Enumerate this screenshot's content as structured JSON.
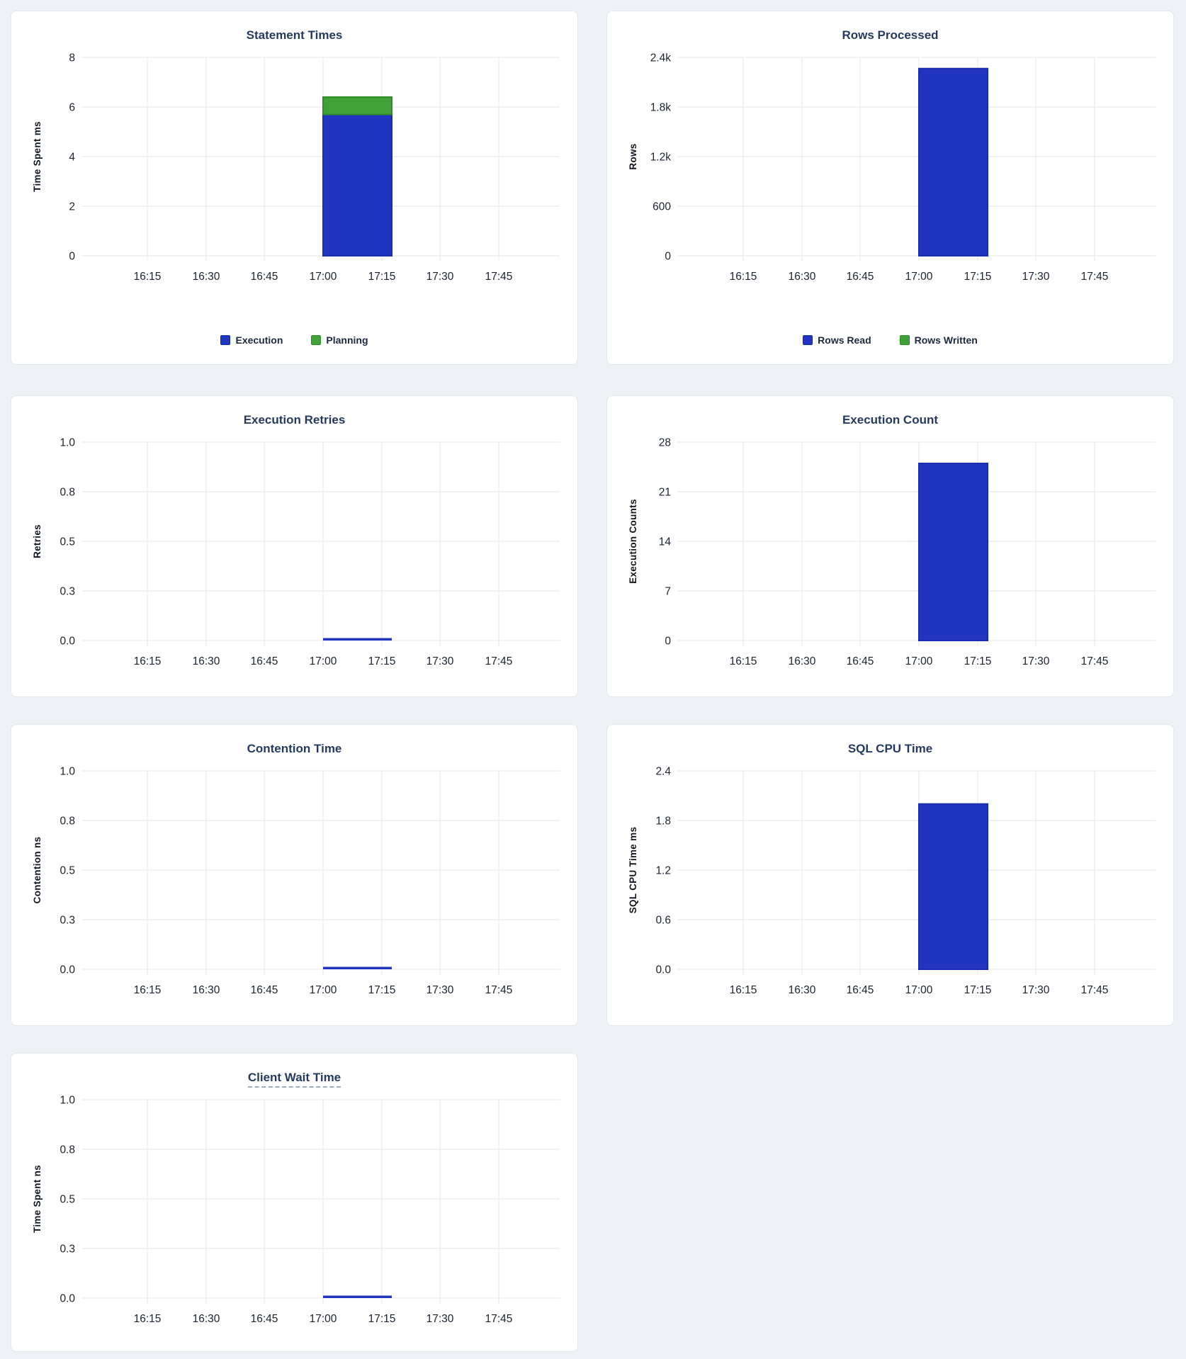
{
  "page": {
    "background": "#eef2f6",
    "panel_background": "#ffffff"
  },
  "colors": {
    "series_blue": "#2135c1",
    "series_blue_stroke": "#1a2cae",
    "series_green": "#3fa138",
    "series_green_stroke": "#2f8d28",
    "title_navy": "#253a61",
    "gridline": "#e8eaed"
  },
  "chart_data": [
    {
      "type": "bar",
      "title": "Statement Times",
      "ylabel": "Time Spent ms",
      "y_ticks": [
        "8",
        "6",
        "4",
        "2",
        "0"
      ],
      "y_max": 8,
      "ylim": [
        0,
        8
      ],
      "x_ticks": [
        "16:15",
        "16:30",
        "16:45",
        "17:00",
        "17:15",
        "17:30",
        "17:45"
      ],
      "bar_interval": {
        "start": "17:00",
        "end": "17:15"
      },
      "stacked": true,
      "grid": true,
      "legend": true,
      "legend_position": "bottom",
      "series": [
        {
          "name": "Execution",
          "value": 5.7,
          "color": "#2135c1",
          "stroke": "#1a2cae"
        },
        {
          "name": "Planning",
          "value": 0.7,
          "color": "#3fa138",
          "stroke": "#2f8d28"
        }
      ]
    },
    {
      "type": "bar",
      "title": "Rows Processed",
      "ylabel": "Rows",
      "y_ticks": [
        "2.4k",
        "1.8k",
        "1.2k",
        "600",
        "0"
      ],
      "y_max": 2400,
      "ylim": [
        0,
        2400
      ],
      "x_ticks": [
        "16:15",
        "16:30",
        "16:45",
        "17:00",
        "17:15",
        "17:30",
        "17:45"
      ],
      "bar_interval": {
        "start": "17:00",
        "end": "17:15"
      },
      "stacked": true,
      "grid": true,
      "legend": true,
      "legend_position": "bottom",
      "series": [
        {
          "name": "Rows Read",
          "value": 2265,
          "color": "#2135c1",
          "stroke": "#1a2cae"
        },
        {
          "name": "Rows Written",
          "value": 0,
          "color": "#3fa138",
          "stroke": "#2f8d28"
        }
      ]
    },
    {
      "type": "bar",
      "title": "Execution Retries",
      "ylabel": "Retries",
      "y_ticks": [
        "1.0",
        "0.8",
        "0.5",
        "0.3",
        "0.0"
      ],
      "y_max": 1,
      "ylim": [
        0,
        1
      ],
      "x_ticks": [
        "16:15",
        "16:30",
        "16:45",
        "17:00",
        "17:15",
        "17:30",
        "17:45"
      ],
      "bar_interval": {
        "start": "17:00",
        "end": "17:15"
      },
      "grid": true,
      "legend": false,
      "series": [
        {
          "value": 0,
          "color": "#2135c1",
          "stroke": "#1a2cae"
        }
      ]
    },
    {
      "type": "bar",
      "title": "Execution Count",
      "ylabel": "Execution Counts",
      "y_ticks": [
        "28",
        "21",
        "14",
        "7",
        "0"
      ],
      "y_max": 28,
      "ylim": [
        0,
        28
      ],
      "x_ticks": [
        "16:15",
        "16:30",
        "16:45",
        "17:00",
        "17:15",
        "17:30",
        "17:45"
      ],
      "bar_interval": {
        "start": "17:00",
        "end": "17:15"
      },
      "grid": true,
      "legend": false,
      "series": [
        {
          "value": 25,
          "color": "#2135c1",
          "stroke": "#1a2cae"
        }
      ]
    },
    {
      "type": "bar",
      "title": "Contention Time",
      "ylabel": "Contention ns",
      "y_ticks": [
        "1.0",
        "0.8",
        "0.5",
        "0.3",
        "0.0"
      ],
      "y_max": 1,
      "ylim": [
        0,
        1
      ],
      "x_ticks": [
        "16:15",
        "16:30",
        "16:45",
        "17:00",
        "17:15",
        "17:30",
        "17:45"
      ],
      "bar_interval": {
        "start": "17:00",
        "end": "17:15"
      },
      "grid": true,
      "legend": false,
      "series": [
        {
          "value": 0,
          "color": "#2135c1",
          "stroke": "#1a2cae"
        }
      ]
    },
    {
      "type": "bar",
      "title": "SQL CPU Time",
      "ylabel": "SQL CPU Time ms",
      "y_ticks": [
        "2.4",
        "1.8",
        "1.2",
        "0.6",
        "0.0"
      ],
      "y_max": 2.4,
      "ylim": [
        0,
        2.4
      ],
      "x_ticks": [
        "16:15",
        "16:30",
        "16:45",
        "17:00",
        "17:15",
        "17:30",
        "17:45"
      ],
      "bar_interval": {
        "start": "17:00",
        "end": "17:15"
      },
      "grid": true,
      "legend": false,
      "series": [
        {
          "value": 2.0,
          "color": "#2135c1",
          "stroke": "#1a2cae"
        }
      ]
    },
    {
      "type": "bar",
      "title": "Client Wait Time",
      "title_underline": true,
      "ylabel": "Time Spent ns",
      "y_ticks": [
        "1.0",
        "0.8",
        "0.5",
        "0.3",
        "0.0"
      ],
      "y_max": 1,
      "ylim": [
        0,
        1
      ],
      "x_ticks": [
        "16:15",
        "16:30",
        "16:45",
        "17:00",
        "17:15",
        "17:30",
        "17:45"
      ],
      "bar_interval": {
        "start": "17:00",
        "end": "17:15"
      },
      "grid": true,
      "legend": false,
      "series": [
        {
          "value": 0,
          "color": "#2135c1",
          "stroke": "#1a2cae"
        }
      ]
    }
  ]
}
